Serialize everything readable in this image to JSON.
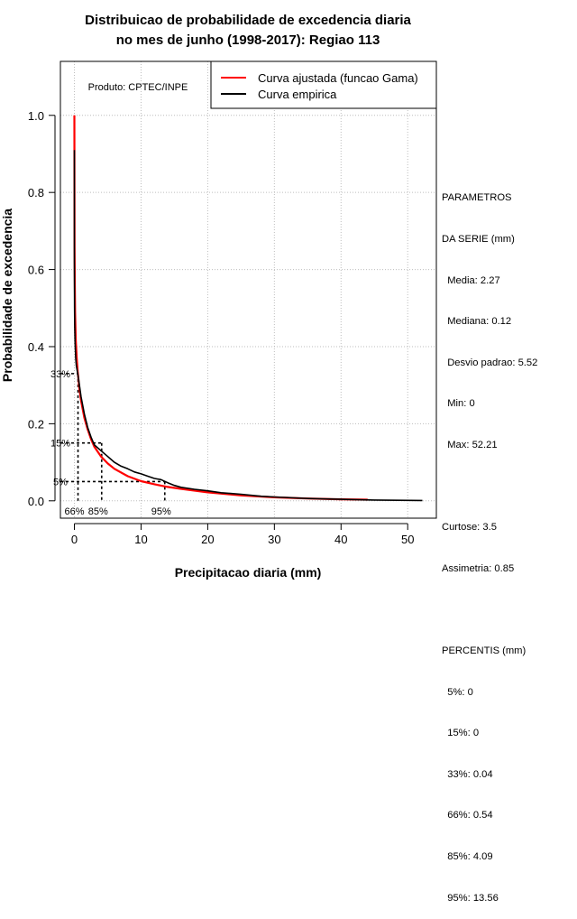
{
  "chart_data": {
    "type": "line",
    "title": [
      "Distribuicao de probabilidade de excedencia diaria",
      "no mes de junho (1998-2017): Regiao 113"
    ],
    "xlabel": "Precipitacao diaria (mm)",
    "ylabel": "Probabilidade de excedencia",
    "xlim": [
      -2.1,
      54.3
    ],
    "ylim": [
      -0.045,
      1.14
    ],
    "xticks": [
      0,
      10,
      20,
      30,
      40,
      50
    ],
    "yticks": [
      0.0,
      0.2,
      0.4,
      0.6,
      0.8,
      1.0
    ],
    "ytick_labels": [
      "0.0",
      "0.2",
      "0.4",
      "0.6",
      "0.8",
      "1.0"
    ],
    "grid": true,
    "product_label": "Produto: CPTEC/INPE",
    "legend": {
      "position": "top-right",
      "entries": [
        {
          "label": "Curva ajustada (funcao Gama)",
          "color": "#ff0000"
        },
        {
          "label": "Curva empirica",
          "color": "#000000"
        }
      ]
    },
    "series": [
      {
        "name": "Curva ajustada (funcao Gama)",
        "color": "#ff0000",
        "x": [
          0.0,
          0.01,
          0.03,
          0.06,
          0.1,
          0.2,
          0.35,
          0.5,
          0.75,
          1.0,
          1.5,
          2.0,
          2.5,
          3.0,
          4.0,
          5.0,
          6.0,
          8.0,
          10.0,
          12.0,
          14.0,
          16.0,
          20.0,
          25.0,
          30.0,
          35.0,
          40.0,
          44.0
        ],
        "y": [
          1.0,
          0.8,
          0.66,
          0.56,
          0.49,
          0.42,
          0.37,
          0.335,
          0.29,
          0.26,
          0.215,
          0.185,
          0.16,
          0.14,
          0.115,
          0.097,
          0.083,
          0.064,
          0.051,
          0.043,
          0.036,
          0.031,
          0.022,
          0.014,
          0.009,
          0.006,
          0.004,
          0.003
        ]
      },
      {
        "name": "Curva empirica",
        "color": "#000000",
        "x": [
          0.0,
          0.0,
          0.02,
          0.05,
          0.1,
          0.2,
          0.3,
          0.5,
          0.75,
          1.0,
          1.5,
          2.0,
          2.5,
          3.0,
          4.0,
          5.0,
          6.0,
          7.0,
          8.0,
          9.0,
          10.0,
          11.0,
          12.0,
          13.0,
          14.0,
          15.0,
          16.0,
          18.0,
          20.0,
          22.0,
          25.0,
          28.0,
          30.0,
          35.0,
          40.0,
          45.0,
          52.21
        ],
        "y": [
          0.91,
          0.62,
          0.5,
          0.45,
          0.41,
          0.37,
          0.35,
          0.33,
          0.3,
          0.27,
          0.225,
          0.19,
          0.165,
          0.145,
          0.13,
          0.115,
          0.1,
          0.09,
          0.083,
          0.075,
          0.07,
          0.064,
          0.058,
          0.055,
          0.047,
          0.04,
          0.035,
          0.03,
          0.026,
          0.021,
          0.017,
          0.012,
          0.01,
          0.006,
          0.004,
          0.002,
          0.001
        ]
      }
    ],
    "percentile_markers": [
      {
        "label": "95%",
        "y_label": "5%",
        "x": 13.56,
        "y": 0.05
      },
      {
        "label": "85%",
        "y_label": "15%",
        "x": 4.09,
        "y": 0.15
      },
      {
        "label": "66%",
        "y_label": "33%",
        "x": 0.54,
        "y": 0.33
      }
    ]
  },
  "side_panel": {
    "lines": [
      "PARAMETROS",
      "DA SERIE (mm)",
      "  Media: 2.27",
      "  Mediana: 0.12",
      "  Desvio padrao: 5.52",
      "  Min: 0",
      "  Max: 52.21",
      "",
      "Curtose: 3.5",
      "Assimetria: 0.85",
      "",
      "PERCENTIS (mm)",
      "  5%: 0",
      "  15%: 0",
      "  33%: 0.04",
      "  66%: 0.54",
      "  85%: 4.09",
      "  95%: 13.56"
    ]
  }
}
